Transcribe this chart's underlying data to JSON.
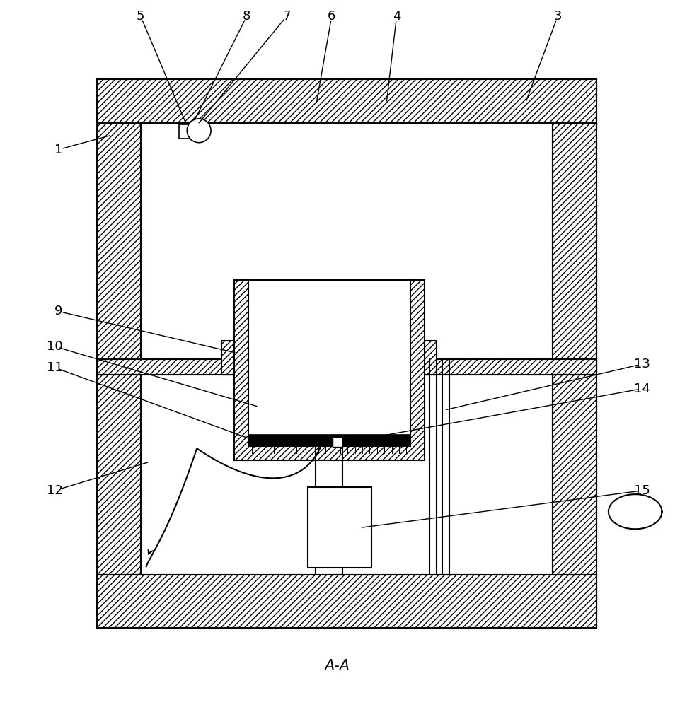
{
  "bg_color": "#ffffff",
  "line_color": "#000000",
  "figsize": [
    9.79,
    10.0
  ],
  "dpi": 100,
  "label_A_A": "A-A",
  "lw": 1.5
}
